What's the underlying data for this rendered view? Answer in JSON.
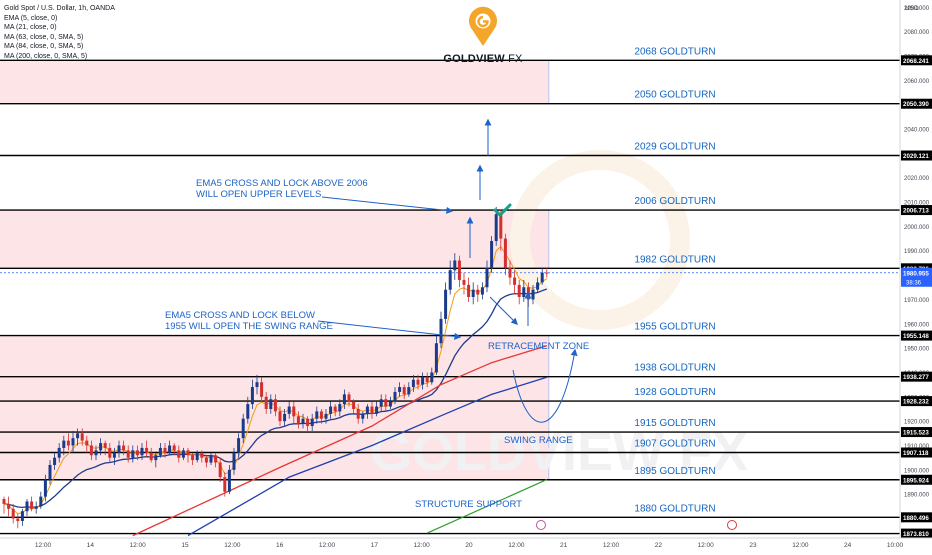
{
  "header": {
    "symbol_line": "Gold Spot / U.S. Dollar, 1h, OANDA",
    "indicators": [
      "EMA (5, close, 0)",
      "MA (21, close, 0)",
      "MA (63, close, 0, SMA, 5)",
      "MA (84, close, 0, SMA, 5)",
      "MA (200, close, 0, SMA, 5)"
    ]
  },
  "logo": {
    "brand": "GOLDVIEW",
    "suffix": "FX",
    "watermark": "GOLDVIEW FX"
  },
  "colors": {
    "goldturn_text": "#1565c0",
    "annotation_text": "#1e63c7",
    "zone_fill": "#fde4e6",
    "up_candle": "#1a3a8a",
    "down_candle": "#d32f2f",
    "ema5": "#f39c12",
    "ma21": "#1f3b8f",
    "ma_red": "#e53935",
    "ma_blue": "#1e40af",
    "ma_green": "#2e9e2e",
    "check": "#16a085",
    "current_price": "#2962ff"
  },
  "chart_data": {
    "type": "candlestick",
    "title": "Gold Spot / U.S. Dollar, 1h, OANDA",
    "y_axis": {
      "position": "right",
      "unit": "USD",
      "range": [
        1872,
        2093
      ],
      "ticks": [
        1880,
        1890,
        1900,
        1910,
        1920,
        1930,
        1940,
        1950,
        1960,
        1970,
        1980,
        1990,
        2000,
        2010,
        2020,
        2030,
        2040,
        2050,
        2060,
        2070,
        2080,
        2090
      ]
    },
    "x_axis": {
      "labels": [
        "12:00",
        "14",
        "12:00",
        "15",
        "12:00",
        "16",
        "12:00",
        "17",
        "12:00",
        "20",
        "12:00",
        "21",
        "12:00",
        "22",
        "12:00",
        "23",
        "12:00",
        "24",
        "10:00"
      ]
    },
    "goldturn_levels": [
      {
        "price": 2068.241,
        "label": "2068 GOLDTURN",
        "price_label": "2068.241"
      },
      {
        "price": 2050.39,
        "label": "2050 GOLDTURN",
        "price_label": "2050.390"
      },
      {
        "price": 2029.121,
        "label": "2029 GOLDTURN",
        "price_label": "2029.121"
      },
      {
        "price": 2006.713,
        "label": "2006 GOLDTURN",
        "price_label": "2006.713"
      },
      {
        "price": 1982.786,
        "label": "1982 GOLDTURN",
        "price_label": "1982.786"
      },
      {
        "price": 1955.148,
        "label": "1955 GOLDTURN",
        "price_label": "1955.148"
      },
      {
        "price": 1938.277,
        "label": "1938 GOLDTURN",
        "price_label": "1938.277"
      },
      {
        "price": 1928.232,
        "label": "1928 GOLDTURN",
        "price_label": "1928.232"
      },
      {
        "price": 1915.523,
        "label": "1915 GOLDTURN",
        "price_label": "1915.523"
      },
      {
        "price": 1907.118,
        "label": "1907 GOLDTURN",
        "price_label": "1907.118"
      },
      {
        "price": 1895.924,
        "label": "1895 GOLDTURN",
        "price_label": "1895.924"
      },
      {
        "price": 1880.496,
        "label": "1880 GOLDTURN",
        "price_label": "1880.496"
      },
      {
        "price": 1873.81,
        "label": "",
        "price_label": "1873.810"
      }
    ],
    "current_price": {
      "price": 1980.955,
      "label": "1980.955",
      "countdown": "38:36"
    },
    "zones": [
      {
        "from": 2050.39,
        "to": 2068.241
      },
      {
        "from": 1982.786,
        "to": 2006.713
      },
      {
        "from": 1895.924,
        "to": 1955.148
      }
    ],
    "annotations": {
      "upper": [
        "EMA5 CROSS AND LOCK ABOVE 2006",
        "WILL OPEN UPPER LEVELS"
      ],
      "lower": [
        "EMA5 CROSS AND LOCK BELOW",
        "1955 WILL OPEN THE SWING RANGE"
      ],
      "retracement": "RETRACEMENT ZONE",
      "swing": "SWING RANGE",
      "structure": "STRUCTURE SUPPORT"
    },
    "candles": [
      [
        1888,
        1886,
        1882,
        1889
      ],
      [
        1886,
        1884,
        1881,
        1889
      ],
      [
        1884,
        1880,
        1878,
        1886
      ],
      [
        1880,
        1879,
        1876,
        1882
      ],
      [
        1879,
        1883,
        1877,
        1884
      ],
      [
        1883,
        1887,
        1881,
        1888
      ],
      [
        1887,
        1884,
        1883,
        1889
      ],
      [
        1884,
        1885,
        1882,
        1887
      ],
      [
        1885,
        1889,
        1884,
        1891
      ],
      [
        1889,
        1896,
        1887,
        1898
      ],
      [
        1896,
        1902,
        1894,
        1904
      ],
      [
        1902,
        1905,
        1900,
        1907
      ],
      [
        1905,
        1909,
        1903,
        1911
      ],
      [
        1909,
        1912,
        1906,
        1914
      ],
      [
        1912,
        1910,
        1908,
        1915
      ],
      [
        1910,
        1913,
        1907,
        1916
      ],
      [
        1913,
        1915,
        1910,
        1917
      ],
      [
        1915,
        1912,
        1910,
        1917
      ],
      [
        1912,
        1910,
        1907,
        1914
      ],
      [
        1910,
        1906,
        1904,
        1912
      ],
      [
        1906,
        1908,
        1904,
        1910
      ],
      [
        1908,
        1911,
        1906,
        1913
      ],
      [
        1911,
        1909,
        1906,
        1912
      ],
      [
        1909,
        1905,
        1903,
        1911
      ],
      [
        1905,
        1907,
        1902,
        1909
      ],
      [
        1907,
        1910,
        1905,
        1912
      ],
      [
        1910,
        1908,
        1906,
        1912
      ],
      [
        1908,
        1905,
        1903,
        1910
      ],
      [
        1905,
        1908,
        1903,
        1910
      ],
      [
        1908,
        1906,
        1904,
        1910
      ],
      [
        1906,
        1909,
        1904,
        1911
      ],
      [
        1909,
        1907,
        1905,
        1912
      ],
      [
        1907,
        1904,
        1903,
        1909
      ],
      [
        1904,
        1906,
        1901,
        1907
      ],
      [
        1906,
        1909,
        1905,
        1911
      ],
      [
        1909,
        1907,
        1905,
        1911
      ],
      [
        1907,
        1910,
        1906,
        1912
      ],
      [
        1910,
        1908,
        1906,
        1911
      ],
      [
        1908,
        1905,
        1903,
        1910
      ],
      [
        1905,
        1908,
        1904,
        1909
      ],
      [
        1908,
        1906,
        1903,
        1909
      ],
      [
        1906,
        1904,
        1902,
        1907
      ],
      [
        1904,
        1907,
        1903,
        1908
      ],
      [
        1907,
        1905,
        1903,
        1908
      ],
      [
        1905,
        1903,
        1901,
        1906
      ],
      [
        1903,
        1906,
        1902,
        1907
      ],
      [
        1906,
        1903,
        1901,
        1907
      ],
      [
        1903,
        1897,
        1895,
        1905
      ],
      [
        1897,
        1891,
        1889,
        1899
      ],
      [
        1891,
        1900,
        1890,
        1902
      ],
      [
        1900,
        1907,
        1898,
        1909
      ],
      [
        1907,
        1913,
        1905,
        1915
      ],
      [
        1913,
        1921,
        1911,
        1923
      ],
      [
        1921,
        1927,
        1919,
        1930
      ],
      [
        1927,
        1934,
        1925,
        1937
      ],
      [
        1934,
        1936,
        1931,
        1939
      ],
      [
        1936,
        1930,
        1928,
        1938
      ],
      [
        1930,
        1925,
        1923,
        1932
      ],
      [
        1925,
        1929,
        1923,
        1931
      ],
      [
        1929,
        1924,
        1922,
        1931
      ],
      [
        1924,
        1920,
        1918,
        1926
      ],
      [
        1920,
        1923,
        1918,
        1925
      ],
      [
        1923,
        1926,
        1921,
        1928
      ],
      [
        1926,
        1922,
        1919,
        1928
      ],
      [
        1922,
        1919,
        1917,
        1924
      ],
      [
        1919,
        1921,
        1917,
        1923
      ],
      [
        1921,
        1918,
        1916,
        1922
      ],
      [
        1918,
        1921,
        1916,
        1923
      ],
      [
        1921,
        1924,
        1919,
        1926
      ],
      [
        1924,
        1921,
        1919,
        1925
      ],
      [
        1921,
        1923,
        1919,
        1925
      ],
      [
        1923,
        1926,
        1921,
        1928
      ],
      [
        1926,
        1924,
        1922,
        1927
      ],
      [
        1924,
        1927,
        1922,
        1929
      ],
      [
        1927,
        1931,
        1925,
        1933
      ],
      [
        1931,
        1928,
        1926,
        1932
      ],
      [
        1928,
        1925,
        1923,
        1929
      ],
      [
        1925,
        1921,
        1919,
        1927
      ],
      [
        1921,
        1923,
        1919,
        1924
      ],
      [
        1923,
        1926,
        1921,
        1927
      ],
      [
        1926,
        1923,
        1921,
        1928
      ],
      [
        1923,
        1926,
        1922,
        1928
      ],
      [
        1926,
        1929,
        1924,
        1931
      ],
      [
        1929,
        1926,
        1924,
        1931
      ],
      [
        1926,
        1928,
        1925,
        1930
      ],
      [
        1928,
        1932,
        1927,
        1934
      ],
      [
        1932,
        1934,
        1930,
        1936
      ],
      [
        1934,
        1931,
        1929,
        1935
      ],
      [
        1931,
        1934,
        1930,
        1936
      ],
      [
        1934,
        1937,
        1932,
        1939
      ],
      [
        1937,
        1935,
        1933,
        1939
      ],
      [
        1935,
        1938,
        1933,
        1940
      ],
      [
        1938,
        1936,
        1934,
        1940
      ],
      [
        1936,
        1940,
        1935,
        1942
      ],
      [
        1940,
        1952,
        1939,
        1955
      ],
      [
        1952,
        1962,
        1950,
        1965
      ],
      [
        1962,
        1974,
        1960,
        1977
      ],
      [
        1974,
        1982,
        1972,
        1986
      ],
      [
        1982,
        1986,
        1978,
        1989
      ],
      [
        1986,
        1978,
        1975,
        1988
      ],
      [
        1978,
        1976,
        1972,
        1981
      ],
      [
        1976,
        1971,
        1969,
        1979
      ],
      [
        1971,
        1974,
        1968,
        1977
      ],
      [
        1974,
        1972,
        1969,
        1976
      ],
      [
        1972,
        1975,
        1970,
        1977
      ],
      [
        1975,
        1983,
        1973,
        1986
      ],
      [
        1983,
        1994,
        1981,
        1996
      ],
      [
        1994,
        2005,
        1992,
        2008
      ],
      [
        2005,
        1995,
        1990,
        2007
      ],
      [
        1995,
        1983,
        1980,
        1997
      ],
      [
        1983,
        1979,
        1976,
        1986
      ],
      [
        1979,
        1976,
        1972,
        1982
      ],
      [
        1976,
        1971,
        1968,
        1978
      ],
      [
        1971,
        1975,
        1969,
        1978
      ],
      [
        1975,
        1970,
        1967,
        1977
      ],
      [
        1970,
        1974,
        1968,
        1976
      ],
      [
        1974,
        1977,
        1973,
        1979
      ],
      [
        1977,
        1981,
        1976,
        1983
      ],
      [
        1981,
        1980.955,
        1979,
        1983
      ]
    ]
  }
}
